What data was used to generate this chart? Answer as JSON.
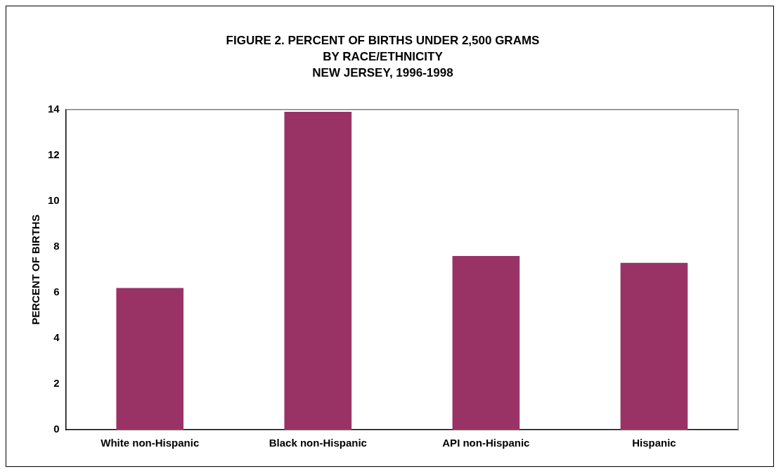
{
  "chart_data": {
    "type": "bar",
    "title": "FIGURE 2. PERCENT OF BIRTHS UNDER 2,500 GRAMS\nBY RACE/ETHNICITY\nNEW JERSEY, 1996-1998",
    "ylabel": "PERCENT OF BIRTHS",
    "categories": [
      "White non-Hispanic",
      "Black non-Hispanic",
      "API non-Hispanic",
      "Hispanic"
    ],
    "values": [
      6.2,
      13.9,
      7.6,
      7.3
    ],
    "color": "#993366",
    "ylim": [
      0,
      14
    ],
    "yticks": [
      0,
      2,
      4,
      6,
      8,
      10,
      12,
      14
    ],
    "grid": false,
    "legend": false
  }
}
